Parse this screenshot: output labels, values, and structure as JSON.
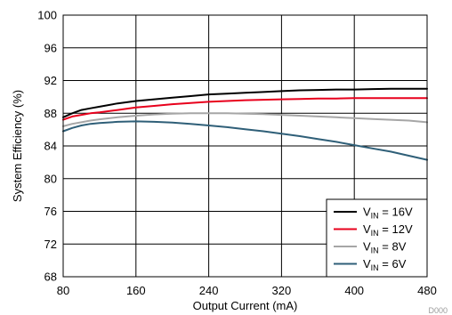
{
  "chart_data": {
    "type": "line",
    "title": "",
    "xlabel": "Output Current (mA)",
    "ylabel": "System Efficiency (%)",
    "xlim": [
      80,
      480
    ],
    "ylim": [
      68,
      100
    ],
    "xticks": [
      80,
      160,
      240,
      320,
      400,
      480
    ],
    "yticks": [
      68,
      72,
      76,
      80,
      84,
      88,
      92,
      96,
      100
    ],
    "grid": true,
    "legend_position": "bottom-right",
    "series": [
      {
        "name": "V_IN = 16V",
        "legend_main": "V",
        "legend_sub": "IN",
        "legend_rest": " = 16V",
        "color": "#000000",
        "x": [
          80,
          90,
          100,
          110,
          120,
          140,
          160,
          180,
          200,
          220,
          240,
          260,
          280,
          300,
          320,
          340,
          360,
          380,
          400,
          420,
          440,
          460,
          480
        ],
        "y": [
          87.5,
          88.0,
          88.4,
          88.6,
          88.8,
          89.2,
          89.5,
          89.7,
          89.9,
          90.1,
          90.3,
          90.4,
          90.5,
          90.6,
          90.7,
          90.8,
          90.85,
          90.9,
          90.9,
          90.95,
          91.0,
          91.0,
          91.0
        ]
      },
      {
        "name": "V_IN = 12V",
        "legend_main": "V",
        "legend_sub": "IN",
        "legend_rest": " = 12V",
        "color": "#e8001c",
        "x": [
          80,
          90,
          100,
          110,
          120,
          140,
          160,
          180,
          200,
          220,
          240,
          260,
          280,
          300,
          320,
          340,
          360,
          380,
          400,
          420,
          440,
          460,
          480
        ],
        "y": [
          87.2,
          87.6,
          87.8,
          88.0,
          88.1,
          88.4,
          88.7,
          88.9,
          89.1,
          89.25,
          89.4,
          89.5,
          89.6,
          89.65,
          89.7,
          89.75,
          89.8,
          89.8,
          89.85,
          89.85,
          89.85,
          89.85,
          89.85
        ]
      },
      {
        "name": "V_IN = 8V",
        "legend_main": "V",
        "legend_sub": "IN",
        "legend_rest": " = 8V",
        "color": "#a6a6a6",
        "x": [
          80,
          90,
          100,
          110,
          120,
          140,
          160,
          180,
          200,
          220,
          240,
          260,
          280,
          300,
          320,
          340,
          360,
          380,
          400,
          420,
          440,
          460,
          480
        ],
        "y": [
          86.4,
          86.7,
          86.9,
          87.1,
          87.25,
          87.5,
          87.7,
          87.85,
          87.95,
          88.0,
          88.0,
          88.0,
          87.95,
          87.9,
          87.8,
          87.7,
          87.6,
          87.5,
          87.4,
          87.3,
          87.2,
          87.1,
          86.9
        ]
      },
      {
        "name": "V_IN = 6V",
        "legend_main": "V",
        "legend_sub": "IN",
        "legend_rest": " = 6V",
        "color": "#2f5f78",
        "x": [
          80,
          90,
          100,
          110,
          120,
          140,
          160,
          180,
          200,
          220,
          240,
          260,
          280,
          300,
          320,
          340,
          360,
          380,
          400,
          420,
          440,
          460,
          480
        ],
        "y": [
          85.8,
          86.2,
          86.5,
          86.7,
          86.8,
          86.95,
          87.0,
          86.95,
          86.85,
          86.7,
          86.5,
          86.3,
          86.05,
          85.8,
          85.5,
          85.2,
          84.85,
          84.5,
          84.1,
          83.7,
          83.3,
          82.8,
          82.3
        ]
      }
    ]
  },
  "watermark": "D000"
}
